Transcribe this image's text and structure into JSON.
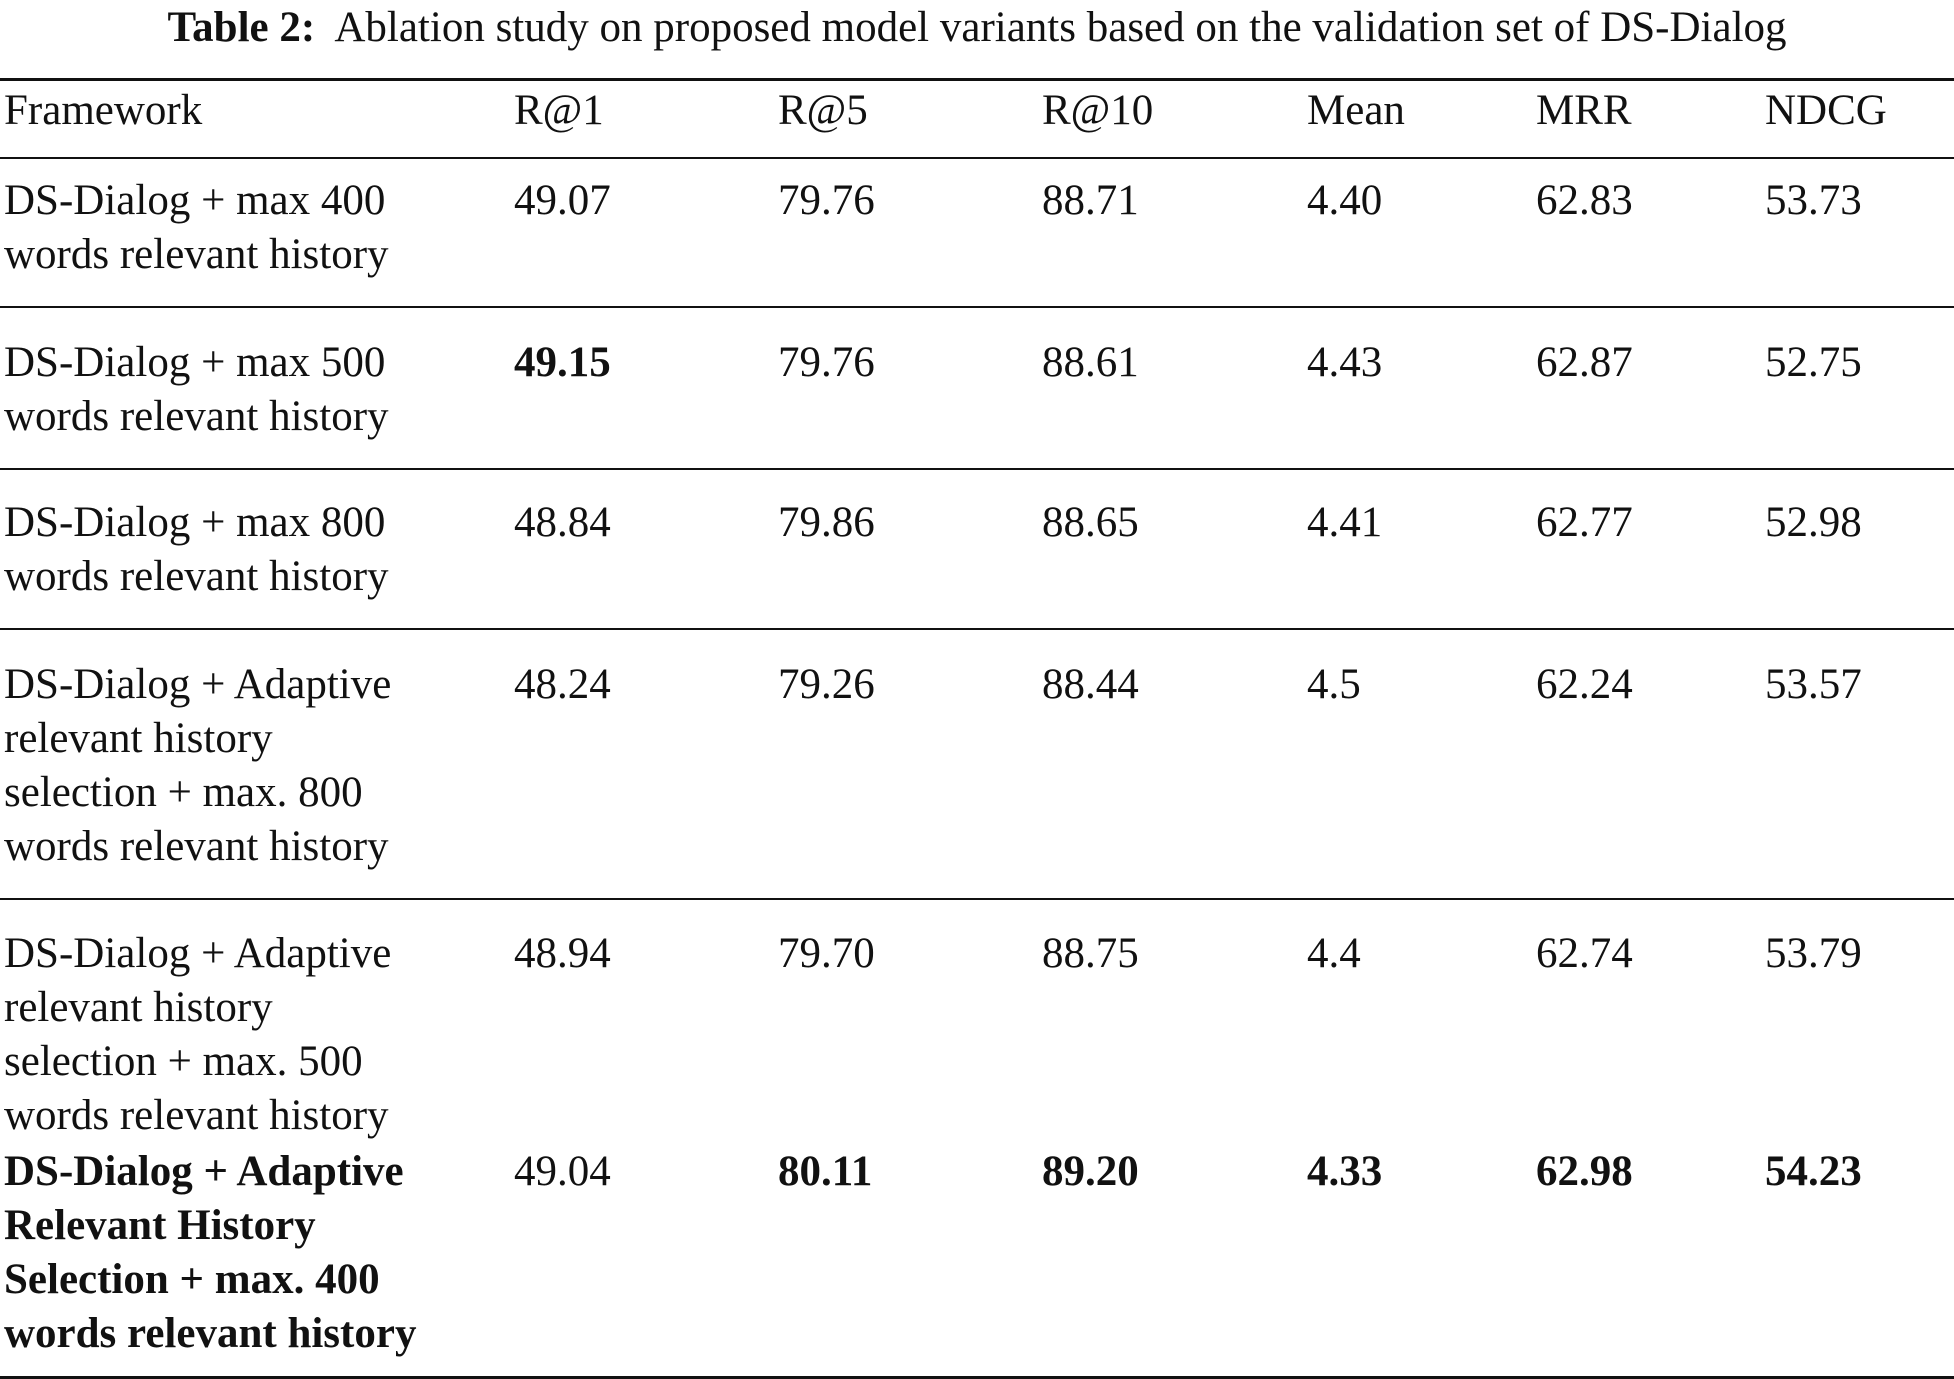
{
  "caption": {
    "label": "Table 2:",
    "text": "Ablation study on proposed model variants based on the validation set of DS-Dialog"
  },
  "table": {
    "headers": [
      "Framework",
      "R@1",
      "R@5",
      "R@10",
      "Mean",
      "MRR",
      "NDCG"
    ],
    "rows": [
      {
        "framework_lines": [
          "DS-Dialog + max 400",
          "words relevant history"
        ],
        "values": [
          "49.07",
          "79.76",
          "88.71",
          "4.40",
          "62.83",
          "53.73"
        ],
        "bold": [
          false,
          false,
          false,
          false,
          false,
          false,
          false
        ]
      },
      {
        "framework_lines": [
          "DS-Dialog + max 500",
          "words relevant history"
        ],
        "values": [
          "49.15",
          "79.76",
          "88.61",
          "4.43",
          "62.87",
          "52.75"
        ],
        "bold": [
          false,
          true,
          false,
          false,
          false,
          false,
          false
        ]
      },
      {
        "framework_lines": [
          "DS-Dialog + max 800",
          "words relevant history"
        ],
        "values": [
          "48.84",
          "79.86",
          "88.65",
          "4.41",
          "62.77",
          "52.98"
        ],
        "bold": [
          false,
          false,
          false,
          false,
          false,
          false,
          false
        ]
      },
      {
        "framework_lines": [
          "DS-Dialog + Adaptive",
          "relevant history",
          "selection + max. 800",
          "words relevant history"
        ],
        "values": [
          "48.24",
          "79.26",
          "88.44",
          "4.5",
          "62.24",
          "53.57"
        ],
        "bold": [
          false,
          false,
          false,
          false,
          false,
          false,
          false
        ]
      },
      {
        "framework_lines": [
          "DS-Dialog + Adaptive",
          "relevant history",
          "selection + max. 500",
          "words relevant history"
        ],
        "values": [
          "48.94",
          "79.70",
          "88.75",
          "4.4",
          "62.74",
          "53.79"
        ],
        "bold": [
          false,
          false,
          false,
          false,
          false,
          false,
          false
        ]
      },
      {
        "framework_lines": [
          "DS-Dialog + Adaptive",
          "Relevant History",
          "Selection + max. 400",
          "words relevant history"
        ],
        "values": [
          "49.04",
          "80.11",
          "89.20",
          "4.33",
          "62.98",
          "54.23"
        ],
        "bold": [
          true,
          false,
          true,
          true,
          true,
          true,
          true
        ]
      }
    ]
  }
}
